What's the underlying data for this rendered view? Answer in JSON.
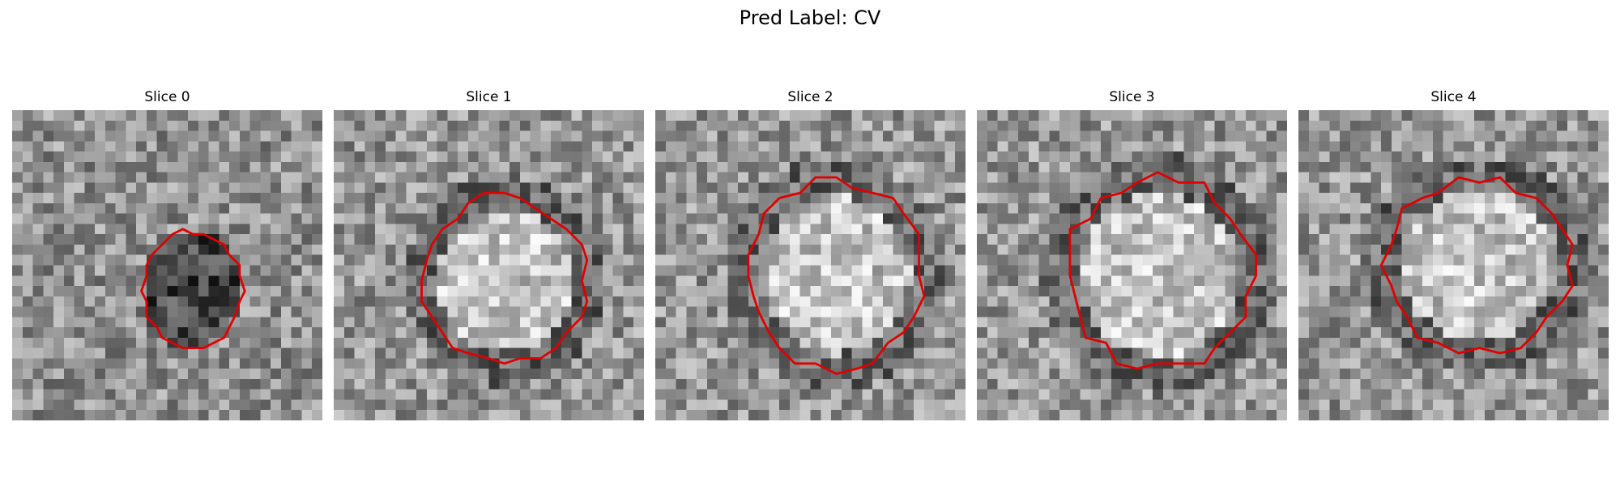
{
  "figure": {
    "title": "Pred Label: CV",
    "contour_color": "#e00000"
  },
  "panels": [
    {
      "title": "Slice 0",
      "center": [
        0.58,
        0.58
      ],
      "radii": [
        0.155,
        0.19
      ],
      "blob": "dark"
    },
    {
      "title": "Slice 1",
      "center": [
        0.55,
        0.55
      ],
      "radii": [
        0.26,
        0.27
      ],
      "blob": "bright"
    },
    {
      "title": "Slice 2",
      "center": [
        0.58,
        0.53
      ],
      "radii": [
        0.28,
        0.3
      ],
      "blob": "bright"
    },
    {
      "title": "Slice 3",
      "center": [
        0.59,
        0.53
      ],
      "radii": [
        0.3,
        0.31
      ],
      "blob": "bright"
    },
    {
      "title": "Slice 4",
      "center": [
        0.58,
        0.5
      ],
      "radii": [
        0.3,
        0.28
      ],
      "blob": "bright"
    }
  ]
}
